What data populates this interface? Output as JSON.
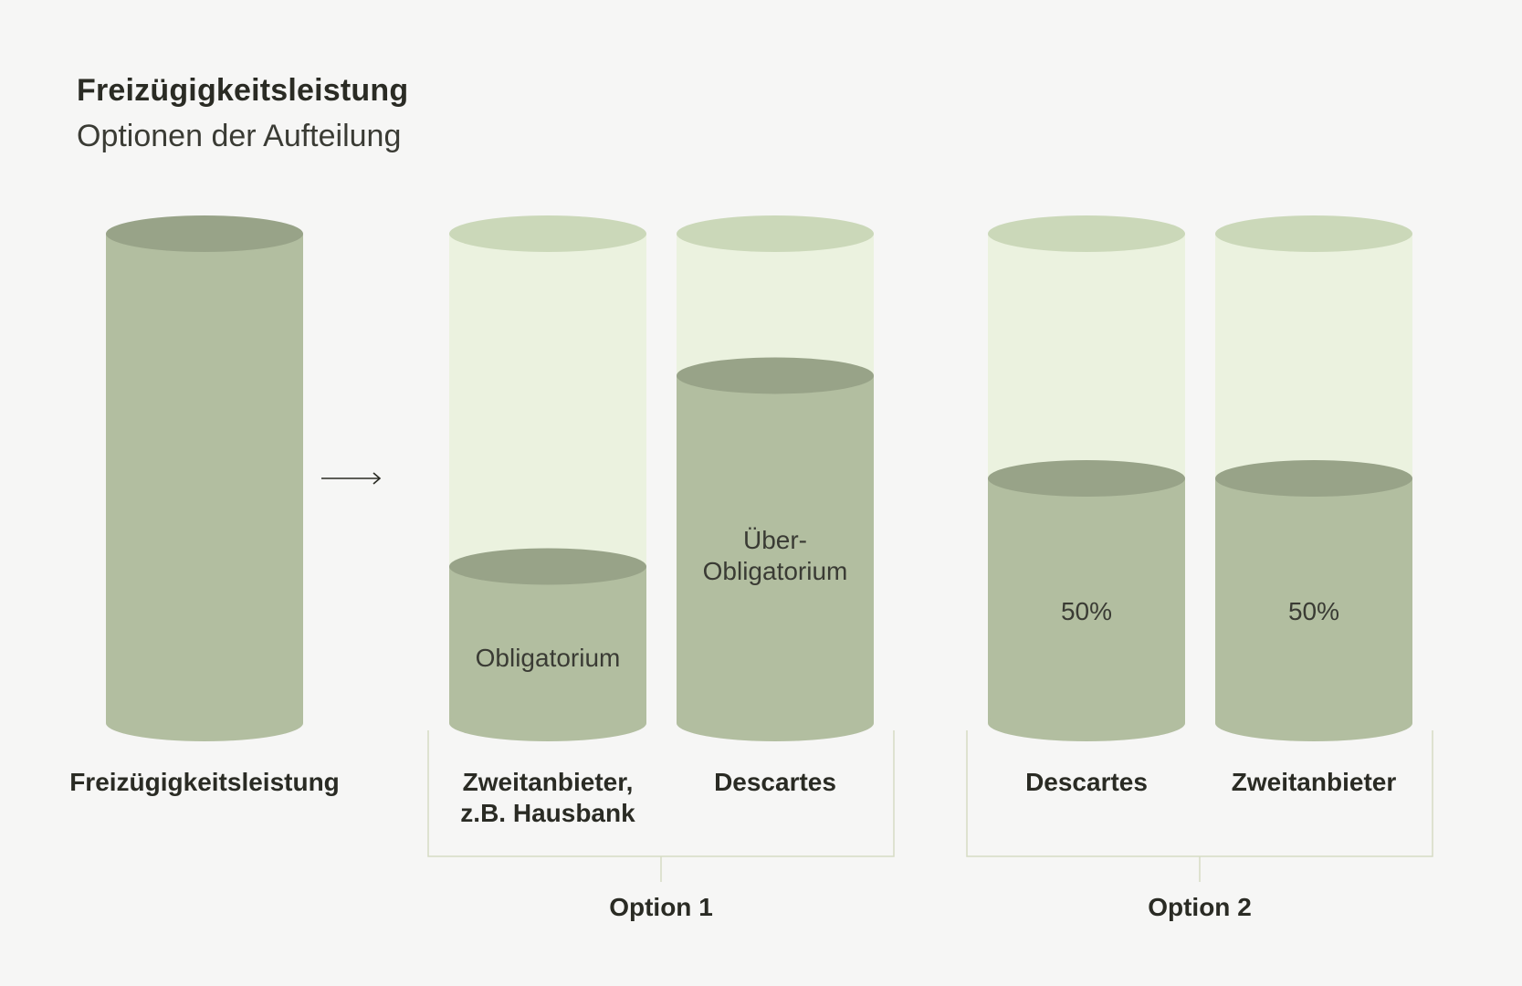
{
  "header": {
    "title": "Freizügigkeitsleistung",
    "subtitle": "Optionen der Aufteilung"
  },
  "colors": {
    "background": "#f6f6f5",
    "fill": "#b2bea0",
    "fill_top": "#98a388",
    "empty": "#ebf2df",
    "empty_top": "#cbd8b9",
    "bracket": "#d6dcc4",
    "arrow": "#2a2b24"
  },
  "arrow_icon": "right-arrow-icon",
  "cylinders": [
    {
      "id": "source",
      "fill_fraction": 1.0,
      "inner_label": [],
      "under_label": [
        "Freizügigkeitsleistung"
      ]
    },
    {
      "id": "opt1-a",
      "fill_fraction": 0.32,
      "inner_label": [
        "Obligatorium"
      ],
      "under_label": [
        "Zweitanbieter,",
        "z.B. Hausbank"
      ]
    },
    {
      "id": "opt1-b",
      "fill_fraction": 0.71,
      "inner_label": [
        "Über-",
        "Obligatorium"
      ],
      "under_label": [
        "Descartes"
      ]
    },
    {
      "id": "opt2-a",
      "fill_fraction": 0.5,
      "inner_label": [
        "50%"
      ],
      "under_label": [
        "Descartes"
      ]
    },
    {
      "id": "opt2-b",
      "fill_fraction": 0.5,
      "inner_label": [
        "50%"
      ],
      "under_label": [
        "Zweitanbieter"
      ]
    }
  ],
  "options": [
    {
      "label": "Option 1"
    },
    {
      "label": "Option 2"
    }
  ]
}
